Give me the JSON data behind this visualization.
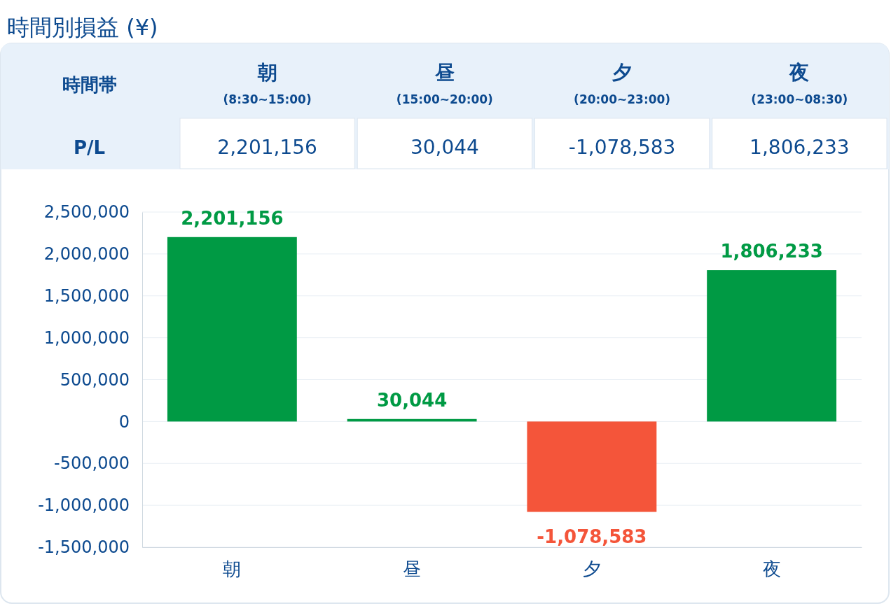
{
  "chart_data": {
    "type": "bar",
    "title": "時間別損益 (¥)",
    "categories": [
      "朝",
      "昼",
      "夕",
      "夜"
    ],
    "values": [
      2201156,
      30044,
      -1078583,
      1806233
    ],
    "colors": [
      "#009a44",
      "#009a44",
      "#f4553a",
      "#009a44"
    ],
    "value_labels": [
      "2,201,156",
      "30,044",
      "-1,078,583",
      "1,806,233"
    ],
    "ylim": [
      -1500000,
      2500000
    ],
    "yticks": [
      {
        "value": -1500000,
        "label": "-1,500,000"
      },
      {
        "value": -1000000,
        "label": "-1,000,000"
      },
      {
        "value": -500000,
        "label": "-500,000"
      },
      {
        "value": 0,
        "label": "0"
      },
      {
        "value": 500000,
        "label": "500,000"
      },
      {
        "value": 1000000,
        "label": "1,000,000"
      },
      {
        "value": 1500000,
        "label": "1,500,000"
      },
      {
        "value": 2000000,
        "label": "2,000,000"
      },
      {
        "value": 2500000,
        "label": "2,500,000"
      }
    ],
    "grid": "y",
    "annotations": [
      "時間帯",
      "P/L",
      "(8:30~15:00)",
      "(15:00~20:00)",
      "(20:00~23:00)",
      "(23:00~08:30)"
    ]
  }
}
